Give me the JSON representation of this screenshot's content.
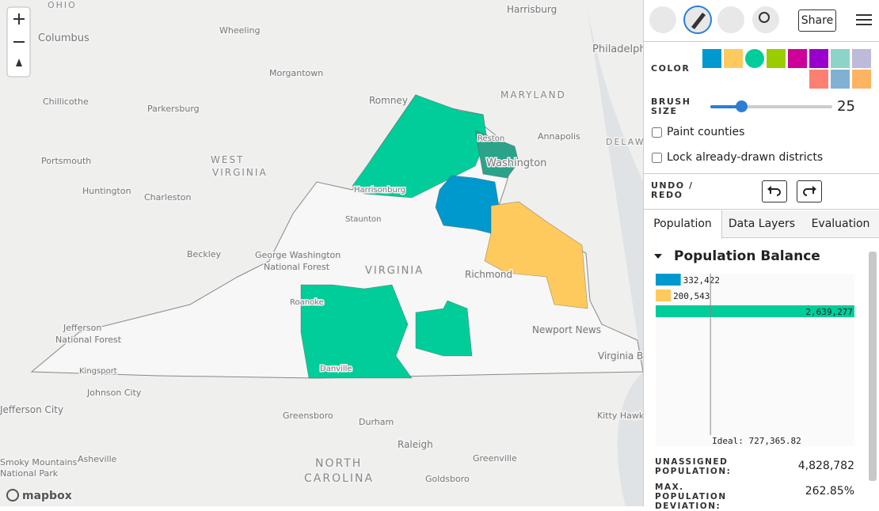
{
  "map": {
    "labels": [
      "Columbus",
      "Wheeling",
      "Harrisburg",
      "Philadelphia",
      "MARYLAND",
      "Morgantown",
      "Romney",
      "Chillicothe",
      "Parkersburg",
      "OHIO",
      "Annapolis",
      "Portsmouth",
      "WEST",
      "VIRGINIA",
      "Reston",
      "Washington",
      "DELAW",
      "Harrisonburg",
      "Huntington",
      "Charleston",
      "Staunton",
      "Beckley",
      "George Washington",
      "National Forest",
      "VIRGINIA",
      "Richmond",
      "Roanoke",
      "Jefferson",
      "National Forest",
      "Newport News",
      "Virginia B",
      "Danville",
      "Kingsport",
      "Johnson City",
      "Jefferson City",
      "Greensboro",
      "Durham",
      "Raleigh",
      "Kitty Hawk",
      "Greenville",
      "Smoky Mountains",
      "Asheville",
      "National Park",
      "NORTH",
      "CAROLINA",
      "Goldsboro"
    ],
    "attribution": "mapbox"
  },
  "toolbar": {
    "share": "Share"
  },
  "brush": {
    "color_label": "COLOR",
    "colors": [
      "#0099cd",
      "#ffca5d",
      "#00cd99",
      "#99cd00",
      "#cd0099",
      "#9900cd",
      "#8dd3c7",
      "#bebada",
      "#fb8072",
      "#80b1d3",
      "#fdb462"
    ],
    "size_label": "BRUSH SIZE",
    "size": "25"
  },
  "options": {
    "paint_counties": "Paint counties",
    "lock": "Lock already-drawn districts"
  },
  "undo_label": "UNDO / REDO",
  "tabs": [
    "Population",
    "Data Layers",
    "Evaluation"
  ],
  "chart_data": {
    "type": "bar",
    "title": "Population Balance",
    "series": [
      {
        "color": "#0099cd",
        "values": [
          332422
        ],
        "value_labels": [
          "332,422"
        ]
      },
      {
        "color": "#ffca5d",
        "values": [
          200543
        ],
        "value_labels": [
          "200,543"
        ]
      },
      {
        "color": "#00cd99",
        "values": [
          2639277
        ],
        "value_labels": [
          "2,639,277"
        ]
      }
    ],
    "ideal": {
      "value": 727365.82,
      "label": "Ideal: 727,365.82"
    }
  },
  "stats": [
    {
      "label": "UNASSIGNED POPULATION:",
      "value": "4,828,782"
    },
    {
      "label": "MAX. POPULATION DEVIATION:",
      "value": "262.85%"
    }
  ]
}
